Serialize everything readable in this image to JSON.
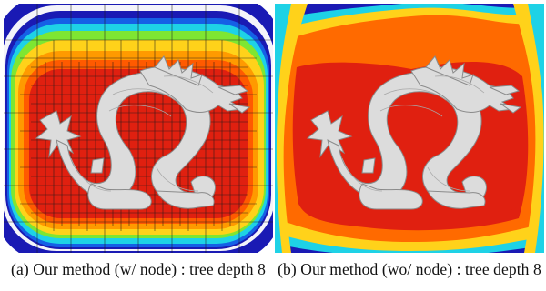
{
  "figure": {
    "panels": [
      {
        "caption": "(a) Our method (w/ node) : tree depth 8",
        "shows_octree_nodes": true,
        "subject": "dragon mesh"
      },
      {
        "caption": "(b) Our method (wo/ node) : tree depth 8",
        "shows_octree_nodes": false,
        "subject": "dragon mesh"
      }
    ],
    "colormap": [
      "#e02010",
      "#ff6a00",
      "#ffd21a",
      "#7ee632",
      "#1ed2e6",
      "#1560e6",
      "#1a1ab4",
      "#f4f4fa"
    ],
    "mesh_color": "#dcdcdc"
  }
}
